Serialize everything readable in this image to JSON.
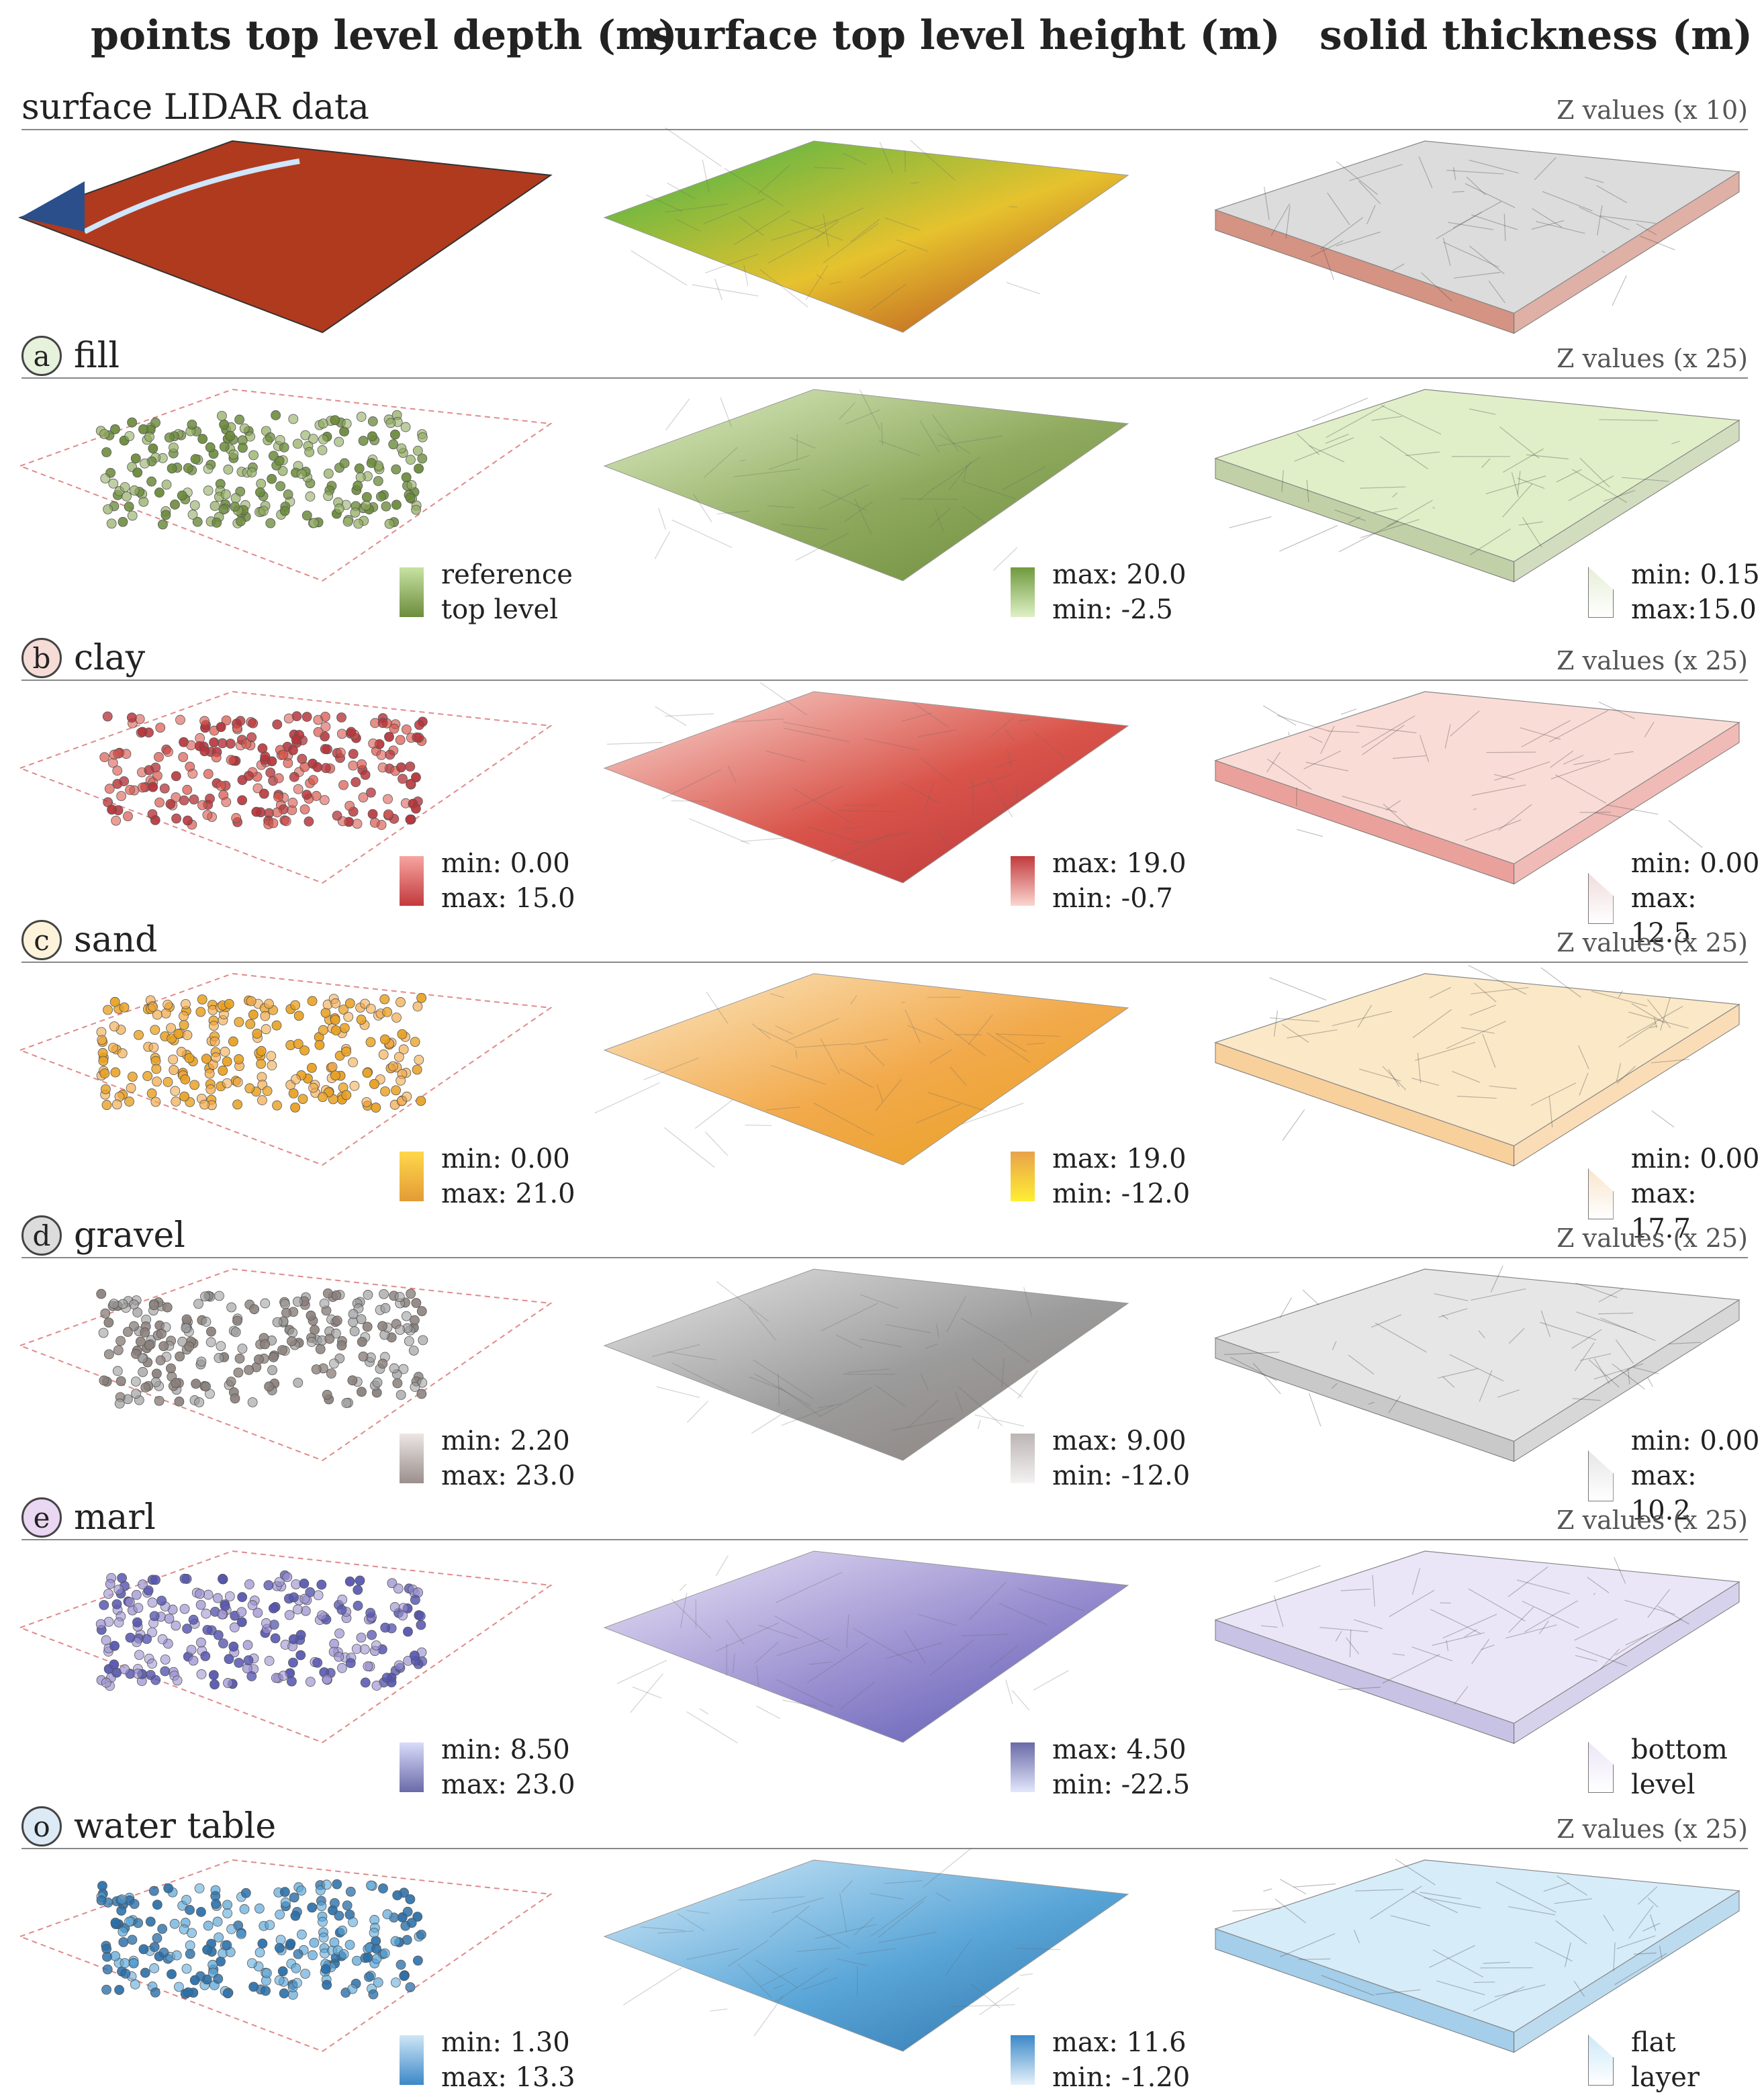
{
  "columns": [
    {
      "id": "points",
      "label": "points top level depth (m)"
    },
    {
      "id": "surface",
      "label": "surface top level height  (m)"
    },
    {
      "id": "solid",
      "label": "solid thickness (m)"
    }
  ],
  "sections": [
    {
      "id": "lidar",
      "marker": "",
      "label": "surface LIDAR data",
      "zvalues": "Z values (x 10)",
      "colors": {
        "base": "#b03a1e",
        "light": "#e9f5d8",
        "dark": "#6d8c3c"
      },
      "legends": []
    },
    {
      "id": "fill",
      "marker": "a",
      "label": "fill",
      "zvalues": "Z values (x 25)",
      "colors": {
        "base": "#8faa5e",
        "light": "#e0efc8",
        "dark": "#6a8a3a",
        "circle": "#e7f2dd"
      },
      "legends": [
        {
          "col": "points",
          "lines": [
            "reference",
            "top level"
          ],
          "swatch": [
            "#c7e3a3",
            "#6d8c3c"
          ]
        },
        {
          "col": "surface",
          "lines": [
            "max: 20.0",
            "min: -2.5"
          ],
          "swatch": [
            "#6f9a3e",
            "#dff0c6"
          ]
        },
        {
          "col": "solid",
          "lines": [
            "min: 0.15",
            "max:15.0"
          ],
          "swatch": [
            "#e6efd6",
            "#ffffff"
          ]
        }
      ]
    },
    {
      "id": "clay",
      "marker": "b",
      "label": "clay",
      "zvalues": "Z values (x 25)",
      "colors": {
        "base": "#d9544a",
        "light": "#fadcd6",
        "dark": "#b5343a",
        "circle": "#f5dcd6"
      },
      "legends": [
        {
          "col": "points",
          "lines": [
            "min: 0.00",
            "max: 15.0"
          ],
          "swatch": [
            "#f7a5a0",
            "#c23a3c"
          ]
        },
        {
          "col": "surface",
          "lines": [
            "max: 19.0",
            "min: -0.7"
          ],
          "swatch": [
            "#c23a3c",
            "#fbd6d0"
          ]
        },
        {
          "col": "solid",
          "lines": [
            "min: 0.00",
            "max: 12.5"
          ],
          "swatch": [
            "#f0dcdc",
            "#ffffff"
          ]
        }
      ]
    },
    {
      "id": "sand",
      "marker": "c",
      "label": "sand",
      "zvalues": "Z values (x 25)",
      "colors": {
        "base": "#f2a94a",
        "light": "#fbe8c7",
        "dark": "#e8a020",
        "circle": "#fcf3da"
      },
      "legends": [
        {
          "col": "points",
          "lines": [
            "min: 0.00",
            "max: 21.0"
          ],
          "swatch": [
            "#ffd84a",
            "#e39b36"
          ]
        },
        {
          "col": "surface",
          "lines": [
            "max: 19.0",
            "min: -12.0"
          ],
          "swatch": [
            "#e9a24a",
            "#ffee33"
          ]
        },
        {
          "col": "solid",
          "lines": [
            "min: 0.00",
            "max: 17.7"
          ],
          "swatch": [
            "#f9e5cc",
            "#ffffff"
          ]
        }
      ]
    },
    {
      "id": "gravel",
      "marker": "d",
      "label": "gravel",
      "zvalues": "Z values (x 25)",
      "colors": {
        "base": "#9c9c9c",
        "light": "#e6e6e6",
        "dark": "#8a7f7a",
        "circle": "#dcdcdc"
      },
      "legends": [
        {
          "col": "points",
          "lines": [
            "min: 2.20",
            "max: 23.0"
          ],
          "swatch": [
            "#ece6e4",
            "#9a8f8c"
          ]
        },
        {
          "col": "surface",
          "lines": [
            "max: 9.00",
            "min: -12.0"
          ],
          "swatch": [
            "#bdb5b5",
            "#f4f2f2"
          ]
        },
        {
          "col": "solid",
          "lines": [
            "min: 0.00",
            "max: 10.2"
          ],
          "swatch": [
            "#e6e6e6",
            "#ffffff"
          ]
        }
      ]
    },
    {
      "id": "marl",
      "marker": "e",
      "label": "marl",
      "zvalues": "Z values (x 25)",
      "colors": {
        "base": "#9a8fd0",
        "light": "#ebe6f7",
        "dark": "#5555b0",
        "circle": "#ead7f2"
      },
      "legends": [
        {
          "col": "points",
          "lines": [
            "min: 8.50",
            "max: 23.0"
          ],
          "swatch": [
            "#d9dcfa",
            "#6a6aa8"
          ]
        },
        {
          "col": "surface",
          "lines": [
            "max: 4.50",
            "min: -22.5"
          ],
          "swatch": [
            "#6a6aa8",
            "#e2e6fb"
          ]
        },
        {
          "col": "solid",
          "lines": [
            "bottom",
            "level"
          ],
          "swatch": [
            "#ebe6f7",
            "#ffffff"
          ]
        }
      ]
    },
    {
      "id": "water",
      "marker": "o",
      "label": "water table",
      "zvalues": "Z values (x 25)",
      "colors": {
        "base": "#5aa6d8",
        "light": "#d6ecf9",
        "dark": "#2b6fa8",
        "circle": "#dceaf6"
      },
      "legends": [
        {
          "col": "points",
          "lines": [
            "min: 1.30",
            "max: 13.3"
          ],
          "swatch": [
            "#cfe6f6",
            "#3b88c8"
          ]
        },
        {
          "col": "surface",
          "lines": [
            "max: 11.6",
            "min: -1.20"
          ],
          "swatch": [
            "#3b88c8",
            "#e6f2fb"
          ]
        },
        {
          "col": "solid",
          "lines": [
            "flat",
            "layer"
          ],
          "swatch": [
            "#cde8f8",
            "#ffffff"
          ]
        }
      ]
    }
  ]
}
